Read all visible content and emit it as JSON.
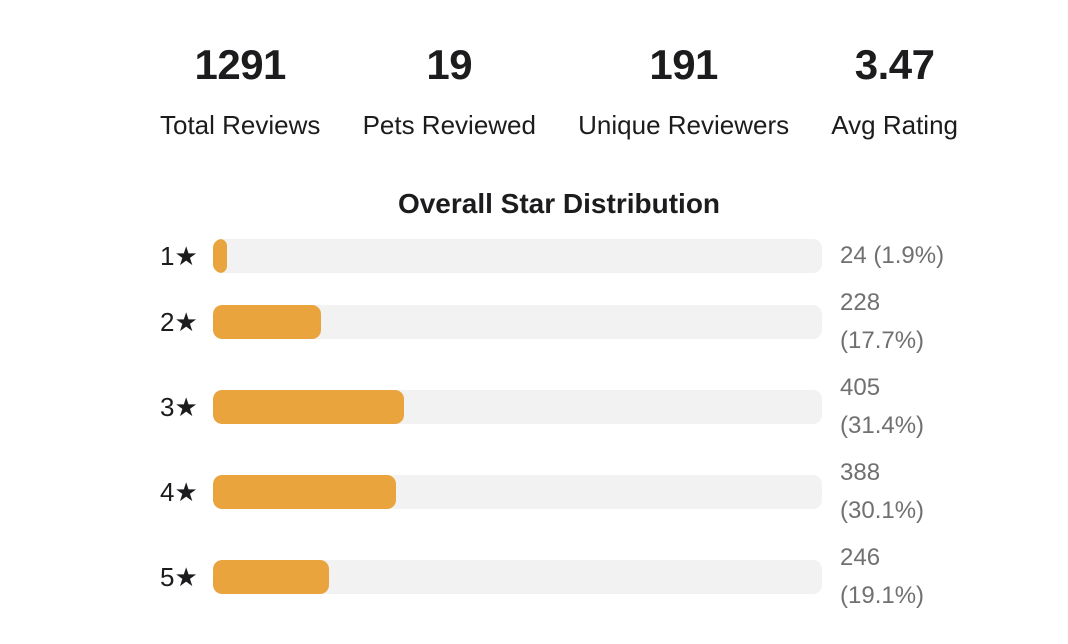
{
  "stats": [
    {
      "value": "1291",
      "label": "Total Reviews"
    },
    {
      "value": "19",
      "label": "Pets Reviewed"
    },
    {
      "value": "191",
      "label": "Unique Reviewers"
    },
    {
      "value": "3.47",
      "label": "Avg Rating"
    }
  ],
  "chart": {
    "title": "Overall Star Distribution",
    "rows": [
      {
        "star": "1★",
        "count": "24",
        "pct_label": "(1.9%)",
        "pct": 1.9
      },
      {
        "star": "2★",
        "count": "228",
        "pct_label": "(17.7%)",
        "pct": 17.7
      },
      {
        "star": "3★",
        "count": "405",
        "pct_label": "(31.4%)",
        "pct": 31.4
      },
      {
        "star": "4★",
        "count": "388",
        "pct_label": "(30.1%)",
        "pct": 30.1
      },
      {
        "star": "5★",
        "count": "246",
        "pct_label": "(19.1%)",
        "pct": 19.1
      }
    ]
  },
  "chart_data": {
    "type": "bar",
    "orientation": "horizontal",
    "title": "Overall Star Distribution",
    "categories": [
      "1★",
      "2★",
      "3★",
      "4★",
      "5★"
    ],
    "values": [
      24,
      228,
      405,
      388,
      246
    ],
    "percentages": [
      1.9,
      17.7,
      31.4,
      30.1,
      19.1
    ],
    "value_labels": [
      "24 (1.9%)",
      "228 (17.7%)",
      "405 (31.4%)",
      "388 (30.1%)",
      "246 (19.1%)"
    ],
    "total": 1291,
    "xlabel": "",
    "ylabel": "",
    "bar_length_unit": "percent_of_total_reviews",
    "grid": false,
    "legend": false
  },
  "colors": {
    "bar_fill": "#e9a43e",
    "bar_track": "#f2f2f2",
    "text": "#1c1c1e",
    "muted_text": "#707070",
    "background": "#ffffff"
  }
}
